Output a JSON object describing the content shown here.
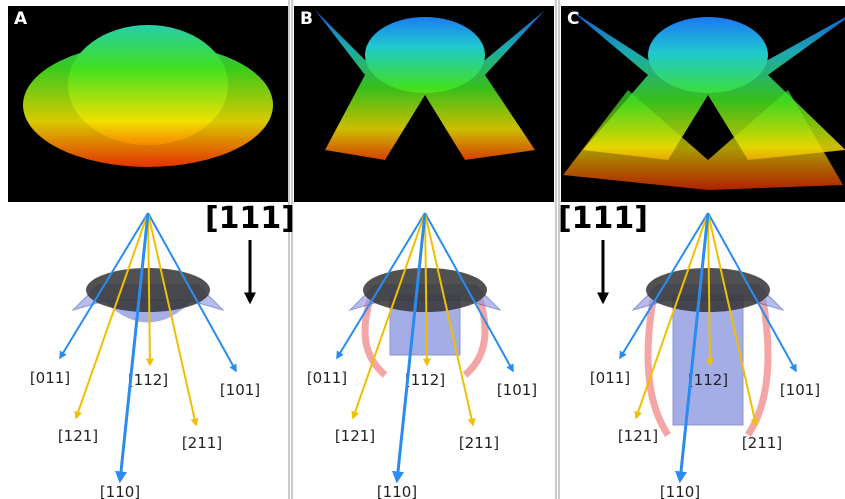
{
  "panels": [
    {
      "label": "A",
      "direction": "[111]",
      "vectors": [
        "[011]",
        "[112]",
        "[101]",
        "[121]",
        "[211]",
        "[110]"
      ]
    },
    {
      "label": "B",
      "vectors": [
        "[011]",
        "[112]",
        "[101]",
        "[121]",
        "[211]",
        "[110]"
      ]
    },
    {
      "label": "C",
      "direction": "[111]",
      "vectors": [
        "[011]",
        "[112]",
        "[101]",
        "[121]",
        "[211]",
        "[110]"
      ]
    }
  ]
}
